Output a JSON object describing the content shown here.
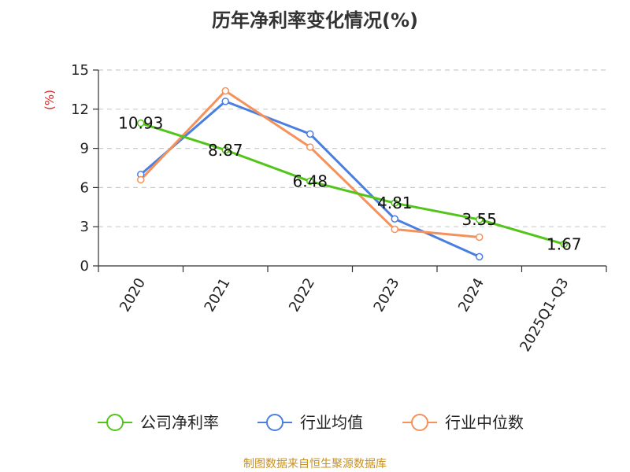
{
  "chart_data": {
    "type": "line",
    "title": "历年净利率变化情况(%)",
    "ylabel": "(%)",
    "xlabel": "",
    "categories": [
      "2020",
      "2021",
      "2022",
      "2023",
      "2024",
      "2025Q1-Q3"
    ],
    "yticks": [
      "0",
      "3",
      "6",
      "9",
      "12",
      "15"
    ],
    "ylim": [
      0,
      15
    ],
    "grid": true,
    "legend_position": "bottom",
    "series": [
      {
        "name": "公司净利率",
        "color": "#52c41a",
        "values": [
          10.93,
          8.87,
          6.48,
          4.81,
          3.55,
          1.67
        ],
        "labels": [
          "10.93",
          "8.87",
          "6.48",
          "4.81",
          "3.55",
          "1.67"
        ]
      },
      {
        "name": "行业均值",
        "color": "#4a7fe0",
        "values": [
          7.0,
          12.6,
          10.1,
          3.6,
          0.7,
          null
        ]
      },
      {
        "name": "行业中位数",
        "color": "#f5915a",
        "values": [
          6.6,
          13.4,
          9.1,
          2.8,
          2.2,
          null
        ]
      }
    ],
    "source": "制图数据来自恒生聚源数据库"
  }
}
